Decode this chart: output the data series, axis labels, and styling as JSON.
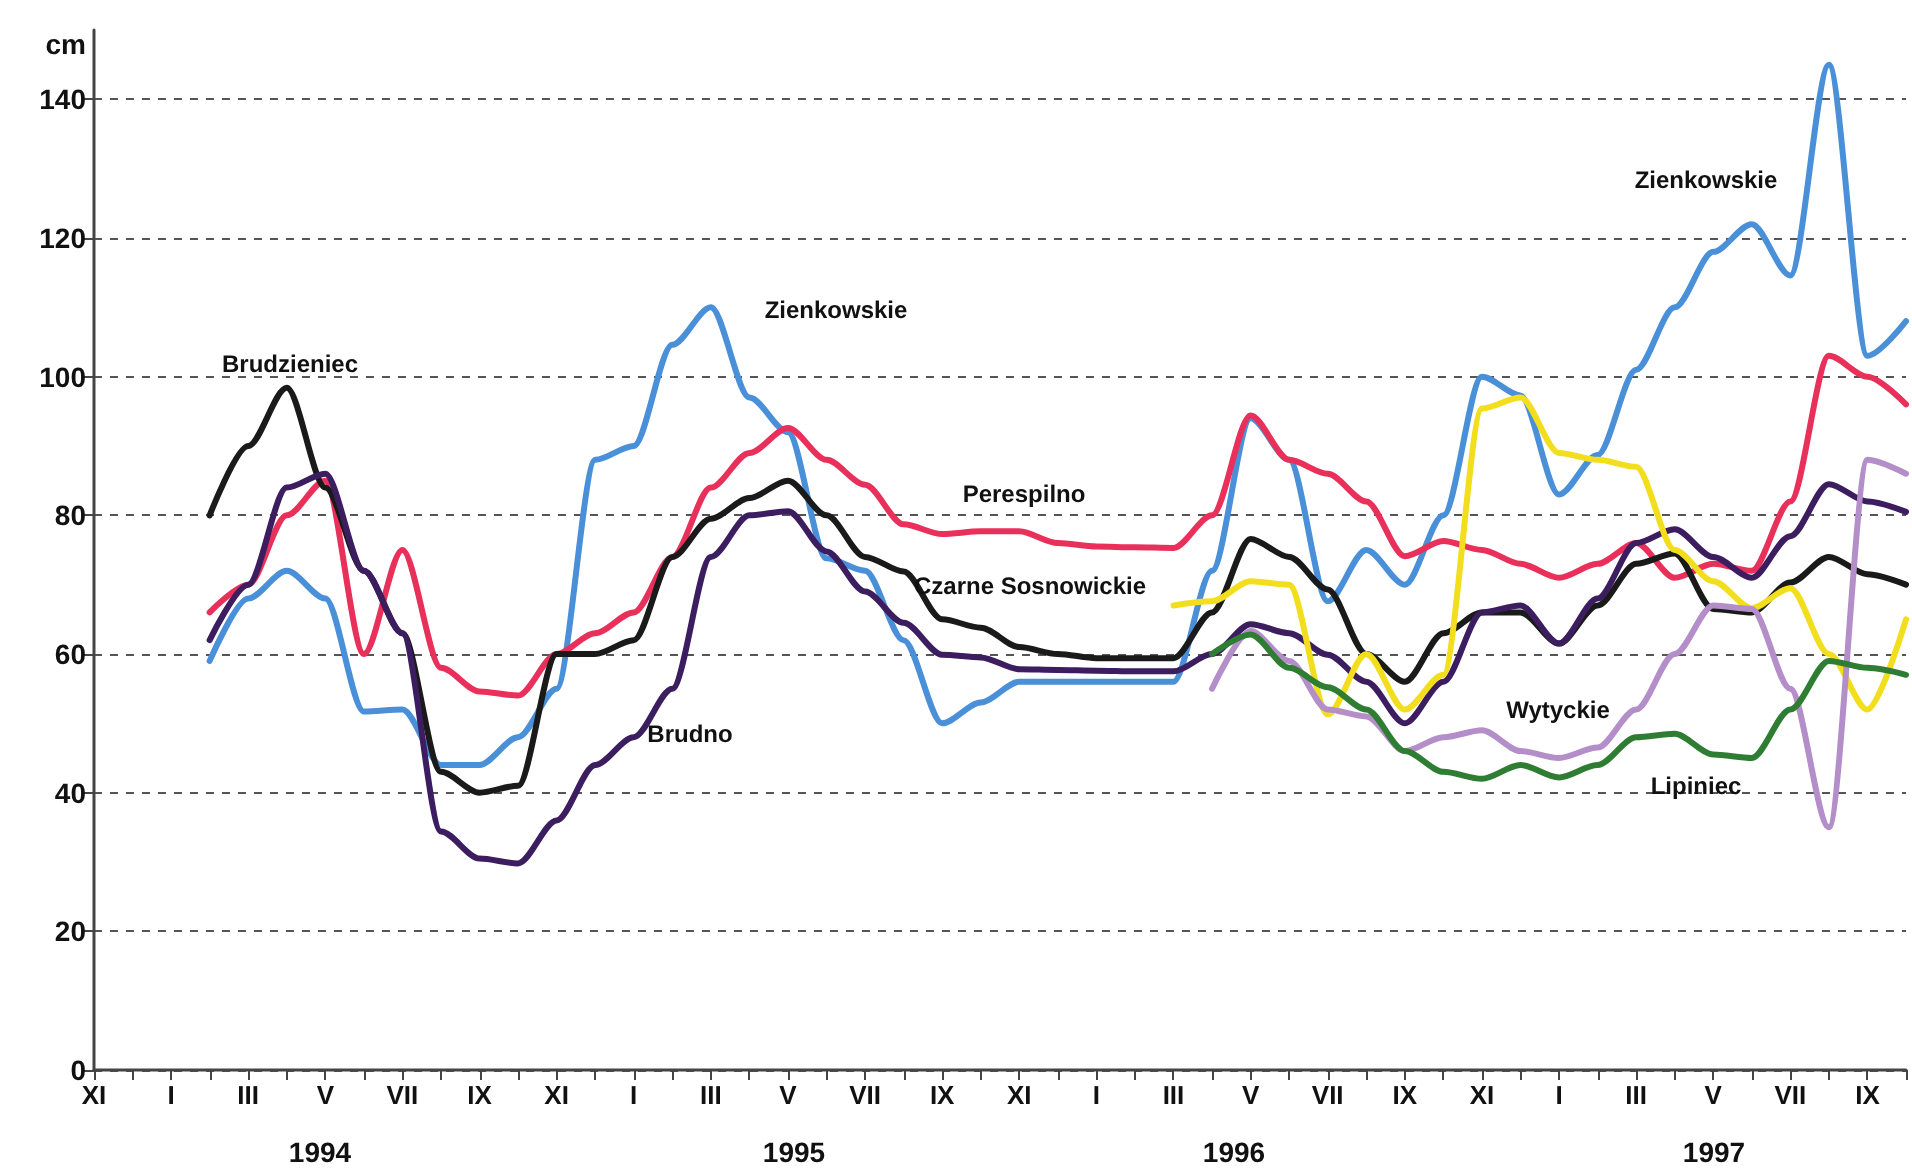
{
  "chart_data": {
    "type": "line",
    "ylabel": "cm",
    "ylim": [
      0,
      150
    ],
    "yticks": [
      0,
      20,
      40,
      60,
      80,
      100,
      120,
      140
    ],
    "categories": [
      "XI",
      null,
      "I",
      null,
      "III",
      null,
      "V",
      null,
      "VII",
      null,
      "IX",
      null,
      "XI",
      null,
      "I",
      null,
      "III",
      null,
      "V",
      null,
      "VII",
      null,
      "IX",
      null,
      "XI",
      null,
      "I",
      null,
      "III",
      null,
      "V",
      null,
      "VII",
      null,
      "IX",
      null,
      "XI",
      null,
      "I",
      null,
      "III",
      null,
      "V",
      null,
      "VII",
      null,
      "IX",
      null
    ],
    "grid": "y",
    "marker": "none",
    "line_style": "solid",
    "series": [
      {
        "color": "#4a90d9",
        "values": [
          null,
          null,
          null,
          59,
          68,
          72,
          68,
          51.7,
          52,
          44,
          44,
          48,
          55,
          88,
          90,
          104.6,
          110,
          97,
          92,
          73.8,
          72,
          62,
          50,
          53,
          56,
          56,
          56,
          56,
          56,
          72,
          94,
          88,
          67.6,
          75,
          70,
          80,
          100,
          97.3,
          83,
          88.7,
          101,
          110,
          118,
          122,
          114.6,
          145,
          103,
          108
        ]
      },
      {
        "color": "#e8305a",
        "values": [
          null,
          null,
          null,
          66,
          70,
          80,
          85,
          60,
          75,
          58,
          54.6,
          54,
          60,
          63,
          66,
          74,
          84,
          89,
          92.6,
          88,
          84.4,
          78.7,
          77.3,
          77.7,
          77.7,
          76,
          75.5,
          75.4,
          75.3,
          80,
          94.4,
          88,
          86,
          82,
          74.1,
          76.3,
          75,
          73,
          71,
          73,
          76,
          71,
          73,
          72,
          82,
          103,
          100,
          96
        ]
      },
      {
        "color": "#1a1a1a",
        "values": [
          null,
          null,
          null,
          80,
          90,
          98.4,
          84,
          72,
          63,
          43,
          40,
          41,
          60,
          60,
          62,
          74,
          79.5,
          82.5,
          85,
          80,
          74,
          71.9,
          65,
          63.8,
          61,
          60,
          59.4,
          59.4,
          59.4,
          66,
          76.6,
          74,
          69.3,
          60,
          56,
          63,
          66,
          66,
          61.5,
          67,
          73,
          74.5,
          66.5,
          66,
          70.3,
          74,
          71.5,
          70
        ]
      },
      {
        "color": "#3b1d60",
        "values": [
          null,
          null,
          null,
          62,
          70,
          84,
          86,
          72,
          63,
          34.4,
          30.5,
          29.8,
          36,
          44,
          48,
          55,
          74,
          80,
          80.6,
          74.8,
          69,
          64.5,
          59.9,
          59.5,
          57.8,
          57.7,
          57.6,
          57.5,
          57.5,
          60,
          64.3,
          63,
          59.9,
          56,
          50,
          56,
          66,
          67,
          61.5,
          68,
          76,
          78,
          74,
          71,
          77,
          84.5,
          82,
          80.5
        ]
      },
      {
        "color": "#f2de1c",
        "values": [
          null,
          null,
          null,
          null,
          null,
          null,
          null,
          null,
          null,
          null,
          null,
          null,
          null,
          null,
          null,
          null,
          null,
          null,
          null,
          null,
          null,
          null,
          null,
          null,
          null,
          null,
          null,
          null,
          67,
          67.6,
          70.5,
          70,
          51.3,
          60,
          52,
          57,
          95.4,
          97,
          89,
          88,
          87,
          75,
          70.5,
          66.6,
          69.5,
          60,
          52,
          65
        ]
      },
      {
        "color": "#b48ec9",
        "values": [
          null,
          null,
          null,
          null,
          null,
          null,
          null,
          null,
          null,
          null,
          null,
          null,
          null,
          null,
          null,
          null,
          null,
          null,
          null,
          null,
          null,
          null,
          null,
          null,
          null,
          null,
          null,
          null,
          null,
          55,
          63.3,
          59,
          52,
          51,
          46,
          48,
          49,
          46,
          45,
          46.5,
          52,
          60,
          67,
          66.5,
          55,
          35,
          88,
          86
        ]
      },
      {
        "color": "#2e7d32",
        "values": [
          null,
          null,
          null,
          null,
          null,
          null,
          null,
          null,
          null,
          null,
          null,
          null,
          null,
          null,
          null,
          null,
          null,
          null,
          null,
          null,
          null,
          null,
          null,
          null,
          null,
          null,
          null,
          null,
          null,
          60,
          62.8,
          58,
          55.2,
          52,
          46,
          43,
          42,
          44,
          42.2,
          44,
          48,
          48.5,
          45.5,
          45,
          52,
          59,
          58,
          57
        ]
      }
    ],
    "annotations": [
      "Brudzieniec",
      "Zienkowskie",
      "Perespilno",
      "Czarne Sosnowickie",
      "Brudno",
      "Zienkowskie",
      "Wytyckie",
      "Lipiniec",
      "1994",
      "1995",
      "1996",
      "1997"
    ]
  }
}
